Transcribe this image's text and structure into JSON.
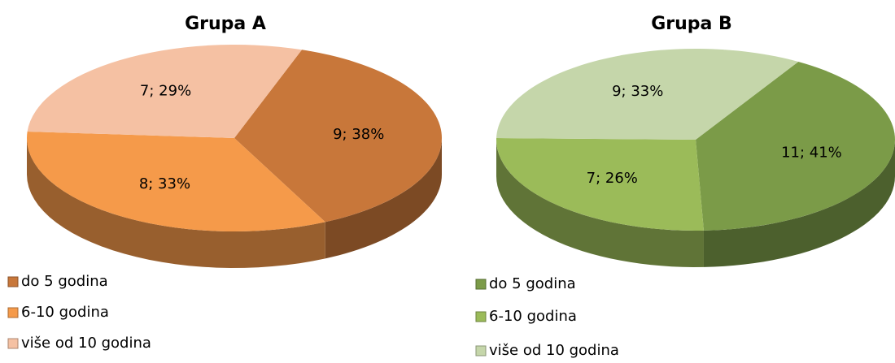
{
  "chart_data": [
    {
      "type": "pie",
      "title": "Grupa A",
      "categories": [
        "do 5 godina",
        "6-10 godina",
        "više od 10 godina"
      ],
      "values": [
        9,
        8,
        7
      ],
      "value_labels": [
        "9; 38%",
        "8; 33%",
        "7; 29%"
      ],
      "colors": [
        "#c8773a",
        "#f59a4a",
        "#f5c1a3"
      ]
    },
    {
      "type": "pie",
      "title": "Grupa B",
      "categories": [
        "do 5 godina",
        "6-10 godina",
        "više od 10 godina"
      ],
      "values": [
        11,
        7,
        9
      ],
      "value_labels": [
        "11; 41%",
        "7; 26%",
        "9; 33%"
      ],
      "colors": [
        "#7b9b48",
        "#9bbb59",
        "#c5d6aa"
      ]
    }
  ]
}
